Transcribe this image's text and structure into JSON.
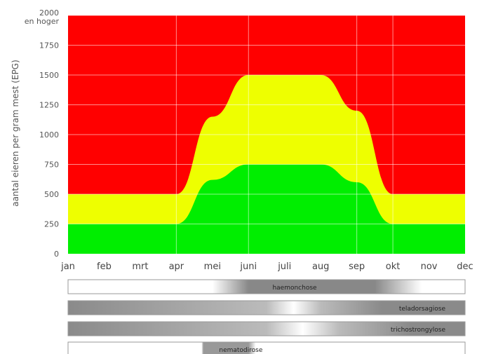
{
  "chart_data": {
    "type": "area",
    "ylabel": "aantal eieren per gram mest (EPG)",
    "ylim": [
      0,
      2000
    ],
    "yticks": [
      {
        "value": 0,
        "label": "0"
      },
      {
        "value": 250,
        "label": "250"
      },
      {
        "value": 500,
        "label": "500"
      },
      {
        "value": 750,
        "label": "750"
      },
      {
        "value": 1000,
        "label": "1000"
      },
      {
        "value": 1250,
        "label": "1250"
      },
      {
        "value": 1500,
        "label": "1500"
      },
      {
        "value": 1750,
        "label": "1750"
      },
      {
        "value": 2000,
        "label": "2000"
      }
    ],
    "ytop_extra_label": "en hoger",
    "months": [
      "jan",
      "feb",
      "mrt",
      "apr",
      "mei",
      "juni",
      "juli",
      "aug",
      "sep",
      "okt",
      "nov",
      "dec"
    ],
    "grid": true,
    "zones": [
      {
        "color": "#00ee00",
        "description": "green zone (low)"
      },
      {
        "color": "#eeff00",
        "description": "yellow zone (medium)"
      },
      {
        "color": "#ff0000",
        "description": "red zone (high)"
      }
    ],
    "green_upper": {
      "x": [
        "jan",
        "apr",
        "mei",
        "juni",
        "aug",
        "sep",
        "okt",
        "dec"
      ],
      "y": [
        250,
        250,
        620,
        750,
        750,
        600,
        250,
        250
      ]
    },
    "yellow_upper": {
      "x": [
        "jan",
        "apr",
        "mei",
        "juni",
        "aug",
        "sep",
        "okt",
        "dec"
      ],
      "y": [
        500,
        500,
        1150,
        1500,
        1500,
        1200,
        500,
        500
      ]
    },
    "season_bars": [
      {
        "label": "haemonchose",
        "peak_start": 5.0,
        "peak_end": 8.5,
        "fade_start": 4.0,
        "fade_end": 9.8
      },
      {
        "label": "teladorsagiose",
        "peak_start": 8.7,
        "peak_end": 11.0,
        "fade_start": 5.5,
        "fade_end": 7.0
      },
      {
        "label": "trichostrongylose",
        "peak_start": 9.5,
        "peak_end": 11.0,
        "fade_start": 5.5,
        "fade_end": 7.5
      },
      {
        "label": "nematodirose",
        "peak_start": 4.0,
        "peak_end": 5.0,
        "fade_start": 3.7,
        "fade_end": 5.2
      }
    ]
  }
}
